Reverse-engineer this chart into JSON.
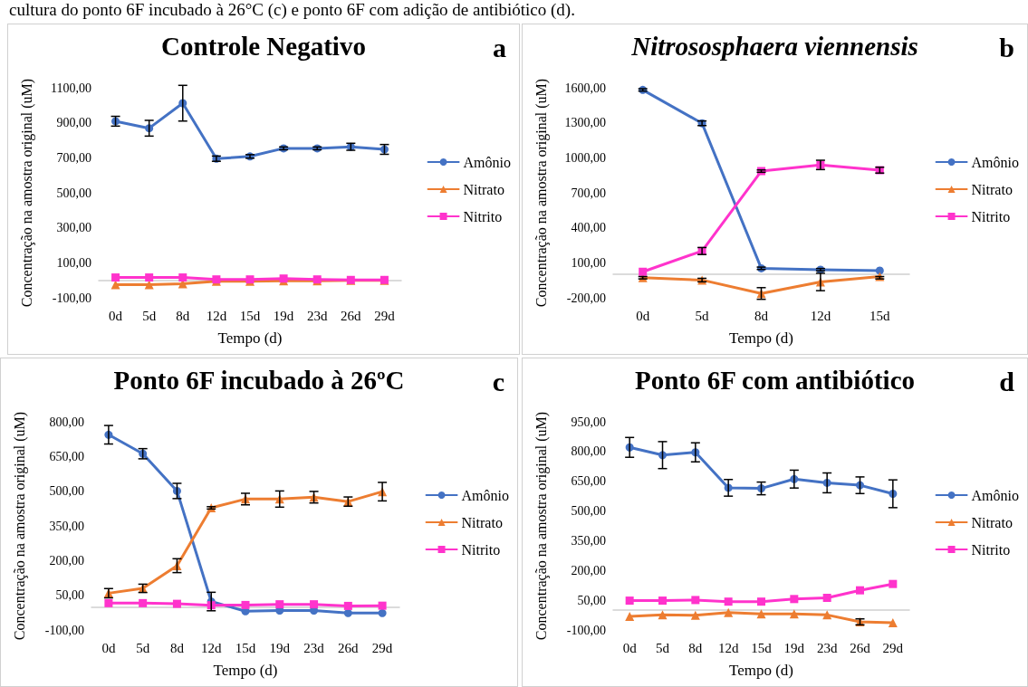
{
  "chart_data": [
    {
      "type": "other",
      "annotations": [
        "cultura do ponto 6F incubado à 26°C (c) e ponto 6F com adição de antibiótico (d)."
      ]
    },
    {
      "type": "line",
      "title": "Controle Negativo",
      "xlabel": "Tempo (d)",
      "ylabel": "Concentração na amostra original (uM)",
      "annotations": [
        "a"
      ],
      "categories": [
        "0d",
        "5d",
        "8d",
        "12d",
        "15d",
        "19d",
        "23d",
        "26d",
        "29d"
      ],
      "series": [
        {
          "name": "Amônio",
          "color": "#4472c4",
          "marker": "circle",
          "values": [
            909,
            869,
            1012,
            695,
            708,
            754,
            754,
            763,
            748
          ],
          "errors": [
            28,
            45,
            102,
            15,
            10,
            8,
            8,
            20,
            28
          ]
        },
        {
          "name": "Nitrato",
          "color": "#ed7d31",
          "marker": "triangle",
          "values": [
            -25,
            -25,
            -20,
            -5,
            -5,
            -3,
            -3,
            0,
            0
          ]
        },
        {
          "name": "Nitrito",
          "color": "#ff33cc",
          "marker": "square",
          "values": [
            16,
            16,
            16,
            5,
            5,
            10,
            5,
            2,
            2
          ]
        }
      ],
      "ylim": [
        -100,
        1100
      ],
      "yticks": [
        {
          "value": -100,
          "label": "-100,00"
        },
        {
          "value": 100,
          "label": "100,00"
        },
        {
          "value": 300,
          "label": "300,00"
        },
        {
          "value": 500,
          "label": "500,00"
        },
        {
          "value": 700,
          "label": "700,00"
        },
        {
          "value": 900,
          "label": "900,00"
        },
        {
          "value": 1100,
          "label": "1100,00"
        }
      ],
      "grid": false,
      "legend": "right",
      "line_style": "solid"
    },
    {
      "type": "line",
      "title": "Nitrososphaera viennensis",
      "xlabel": "Tempo (d)",
      "ylabel": "Concentração na amostra original (uM)",
      "annotations": [
        "b"
      ],
      "categories": [
        "0d",
        "5d",
        "8d",
        "12d",
        "15d"
      ],
      "series": [
        {
          "name": "Amônio",
          "color": "#4472c4",
          "marker": "circle",
          "values": [
            1582,
            1296,
            53,
            41,
            33
          ],
          "errors": [
            10,
            20,
            10,
            10,
            null
          ]
        },
        {
          "name": "Nitrato",
          "color": "#ed7d31",
          "marker": "triangle",
          "values": [
            -28,
            -48,
            -163,
            -64,
            -18
          ],
          "errors": [
            10,
            15,
            50,
            75,
            [
              -38,
              -18
            ]
          ]
        },
        {
          "name": "Nitrito",
          "color": "#ff33cc",
          "marker": "square",
          "values": [
            23,
            201,
            886,
            939,
            894
          ],
          "errors": [
            null,
            30,
            10,
            40,
            25
          ]
        }
      ],
      "ylim": [
        -200,
        1600
      ],
      "yticks": [
        {
          "value": -200,
          "label": "-200,00"
        },
        {
          "value": 100,
          "label": "100,00"
        },
        {
          "value": 400,
          "label": "400,00"
        },
        {
          "value": 700,
          "label": "700,00"
        },
        {
          "value": 1000,
          "label": "1000,00"
        },
        {
          "value": 1300,
          "label": "1300,00"
        },
        {
          "value": 1600,
          "label": "1600,00"
        }
      ],
      "grid": false,
      "legend": "right",
      "line_style": "solid"
    },
    {
      "type": "line",
      "title": "Ponto 6F incubado à 26ºC",
      "xlabel": "Tempo (d)",
      "ylabel": "Concentração na amostra original (uM)",
      "annotations": [
        "c"
      ],
      "categories": [
        "0d",
        "5d",
        "8d",
        "12d",
        "15d",
        "19d",
        "23d",
        "26d",
        "29d"
      ],
      "series": [
        {
          "name": "Amônio",
          "color": "#4472c4",
          "marker": "circle",
          "values": [
            744,
            662,
            501,
            23,
            -19,
            -16,
            -16,
            -27,
            -27
          ],
          "errors": [
            40,
            22,
            33,
            40,
            null,
            null,
            null,
            null,
            null
          ]
        },
        {
          "name": "Nitrato",
          "color": "#ed7d31",
          "marker": "triangle",
          "values": [
            59,
            80,
            178,
            428,
            466,
            466,
            474,
            455,
            498
          ],
          "errors": [
            20,
            18,
            30,
            5,
            25,
            35,
            25,
            20,
            40
          ]
        },
        {
          "name": "Nitrito",
          "color": "#ff33cc",
          "marker": "square",
          "values": [
            16,
            16,
            13,
            7,
            8,
            11,
            11,
            4,
            5
          ]
        }
      ],
      "ylim": [
        -100,
        800
      ],
      "yticks": [
        {
          "value": -100,
          "label": "-100,00"
        },
        {
          "value": 50,
          "label": "50,00"
        },
        {
          "value": 200,
          "label": "200,00"
        },
        {
          "value": 350,
          "label": "350,00"
        },
        {
          "value": 500,
          "label": "500,00"
        },
        {
          "value": 650,
          "label": "650,00"
        },
        {
          "value": 800,
          "label": "800,00"
        }
      ],
      "grid": false,
      "legend": "right",
      "line_style": "solid"
    },
    {
      "type": "line",
      "title": "Ponto 6F com antibiótico",
      "xlabel": "Tempo (d)",
      "ylabel": "Concentração na amostra original (uM)",
      "annotations": [
        "d"
      ],
      "categories": [
        "0d",
        "5d",
        "8d",
        "12d",
        "15d",
        "19d",
        "23d",
        "26d",
        "29d"
      ],
      "series": [
        {
          "name": "Amônio",
          "color": "#4472c4",
          "marker": "circle",
          "values": [
            821,
            782,
            796,
            617,
            614,
            661,
            642,
            630,
            587
          ],
          "errors": [
            50,
            68,
            48,
            42,
            32,
            45,
            50,
            42,
            70
          ]
        },
        {
          "name": "Nitrato",
          "color": "#ed7d31",
          "marker": "triangle",
          "values": [
            -32,
            -24,
            -26,
            -12,
            -19,
            -19,
            -24,
            -59,
            -63
          ],
          "errors": [
            null,
            null,
            null,
            null,
            null,
            null,
            null,
            15,
            null
          ]
        },
        {
          "name": "Nitrito",
          "color": "#ff33cc",
          "marker": "square",
          "values": [
            48,
            48,
            51,
            43,
            43,
            56,
            62,
            100,
            132
          ]
        }
      ],
      "ylim": [
        -100,
        950
      ],
      "yticks": [
        {
          "value": -100,
          "label": "-100,00"
        },
        {
          "value": 50,
          "label": "50,00"
        },
        {
          "value": 200,
          "label": "200,00"
        },
        {
          "value": 350,
          "label": "350,00"
        },
        {
          "value": 500,
          "label": "500,00"
        },
        {
          "value": 650,
          "label": "650,00"
        },
        {
          "value": 800,
          "label": "800,00"
        },
        {
          "value": 950,
          "label": "950,00"
        }
      ],
      "grid": false,
      "legend": "right",
      "line_style": "solid"
    }
  ]
}
